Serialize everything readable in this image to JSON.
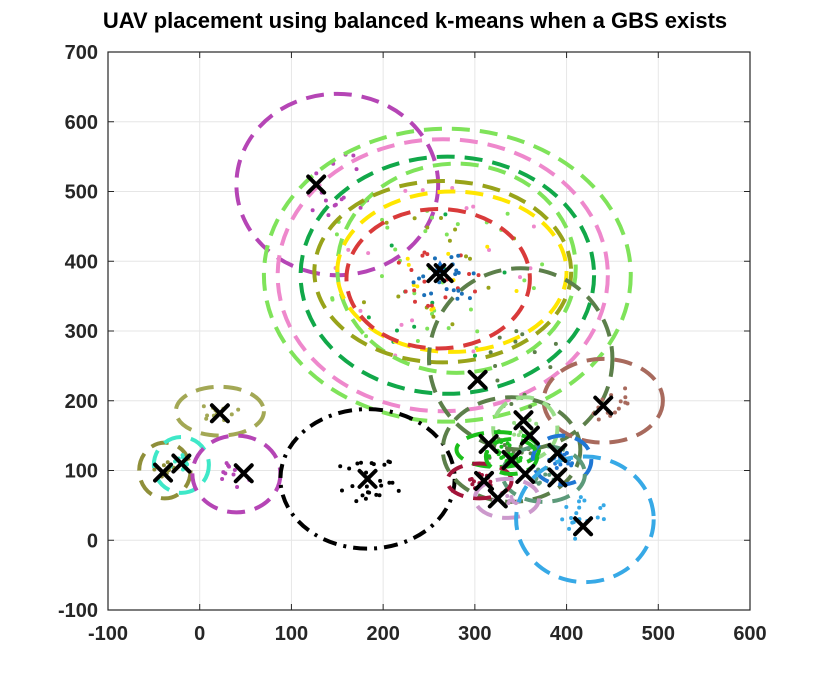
{
  "chart_data": {
    "type": "scatter",
    "title": "UAV placement using balanced k-means when a GBS exists",
    "xlabel": "",
    "ylabel": "",
    "xlim": [
      -100,
      600
    ],
    "ylim": [
      -100,
      700
    ],
    "xticks": [
      "-100",
      "0",
      "100",
      "200",
      "300",
      "400",
      "500",
      "600"
    ],
    "yticks": [
      "-100",
      "0",
      "100",
      "200",
      "300",
      "400",
      "500",
      "600",
      "700"
    ],
    "grid": true,
    "legend": "none",
    "gbs": {
      "x": 262,
      "y": 390,
      "color": "#1f77d4"
    },
    "uav_markers": [
      {
        "x": 127,
        "y": 510
      },
      {
        "x": 258,
        "y": 383
      },
      {
        "x": 266,
        "y": 383
      },
      {
        "x": 303,
        "y": 230
      },
      {
        "x": 440,
        "y": 193
      },
      {
        "x": 22,
        "y": 182
      },
      {
        "x": 353,
        "y": 172
      },
      {
        "x": 360,
        "y": 150
      },
      {
        "x": 315,
        "y": 138
      },
      {
        "x": 390,
        "y": 125
      },
      {
        "x": -20,
        "y": 110
      },
      {
        "x": 340,
        "y": 115
      },
      {
        "x": -40,
        "y": 97
      },
      {
        "x": 48,
        "y": 96
      },
      {
        "x": 355,
        "y": 95
      },
      {
        "x": 390,
        "y": 90
      },
      {
        "x": 183,
        "y": 88
      },
      {
        "x": 310,
        "y": 85
      },
      {
        "x": 325,
        "y": 60
      },
      {
        "x": 418,
        "y": 20
      }
    ],
    "clusters": [
      {
        "color": "#b545b5",
        "dash": "long",
        "cx": 150,
        "cy": 510,
        "rx": 110,
        "ry": 130,
        "n": 16,
        "sx": 40,
        "sy": 50
      },
      {
        "color": "#7fe35a",
        "dash": "long",
        "cx": 270,
        "cy": 380,
        "rx": 200,
        "ry": 210,
        "n": 22,
        "sx": 140,
        "sy": 160
      },
      {
        "color": "#ee88cc",
        "dash": "long",
        "cx": 265,
        "cy": 380,
        "rx": 180,
        "ry": 195,
        "n": 18,
        "sx": 120,
        "sy": 140
      },
      {
        "color": "#11a849",
        "dash": "long",
        "cx": 270,
        "cy": 380,
        "rx": 160,
        "ry": 170,
        "n": 12,
        "sx": 110,
        "sy": 120
      },
      {
        "color": "#7fe35a",
        "dash": "long",
        "cx": 280,
        "cy": 390,
        "rx": 130,
        "ry": 150,
        "n": 10,
        "sx": 90,
        "sy": 110
      },
      {
        "color": "#98a31a",
        "dash": "long",
        "cx": 265,
        "cy": 385,
        "rx": 140,
        "ry": 130,
        "n": 16,
        "sx": 100,
        "sy": 90
      },
      {
        "color": "#ffe600",
        "dash": "long",
        "cx": 275,
        "cy": 385,
        "rx": 125,
        "ry": 115,
        "n": 10,
        "sx": 80,
        "sy": 70
      },
      {
        "color": "#d93a3a",
        "dash": "long",
        "cx": 260,
        "cy": 375,
        "rx": 100,
        "ry": 100,
        "n": 18,
        "sx": 55,
        "sy": 40
      },
      {
        "color": "#1a6fb8",
        "dash": "none",
        "cx": 275,
        "cy": 375,
        "rx": 0,
        "ry": 0,
        "n": 20,
        "sx": 45,
        "sy": 35
      },
      {
        "color": "#5c7f4a",
        "dash": "long",
        "cx": 350,
        "cy": 260,
        "rx": 100,
        "ry": 130,
        "n": 14,
        "sx": 40,
        "sy": 80
      },
      {
        "color": "#a86a5d",
        "dash": "long",
        "cx": 440,
        "cy": 200,
        "rx": 65,
        "ry": 60,
        "n": 14,
        "sx": 30,
        "sy": 30
      },
      {
        "color": "#a3a855",
        "dash": "long",
        "cx": 22,
        "cy": 185,
        "rx": 48,
        "ry": 35,
        "n": 12,
        "sx": 22,
        "sy": 15
      },
      {
        "color": "#8f8f3a",
        "dash": "long",
        "cx": -38,
        "cy": 100,
        "rx": 28,
        "ry": 40,
        "n": 10,
        "sx": 12,
        "sy": 15
      },
      {
        "color": "#3ee8c8",
        "dash": "long",
        "cx": -20,
        "cy": 108,
        "rx": 30,
        "ry": 40,
        "n": 10,
        "sx": 12,
        "sy": 16
      },
      {
        "color": "#b545b5",
        "dash": "long",
        "cx": 40,
        "cy": 95,
        "rx": 48,
        "ry": 55,
        "n": 10,
        "sx": 18,
        "sy": 20
      },
      {
        "color": "#000000",
        "dash": "dashdot",
        "cx": 183,
        "cy": 88,
        "rx": 95,
        "ry": 100,
        "n": 26,
        "sx": 40,
        "sy": 35
      },
      {
        "color": "#5c7f4a",
        "dash": "long",
        "cx": 340,
        "cy": 130,
        "rx": 75,
        "ry": 75,
        "n": 16,
        "sx": 30,
        "sy": 30
      },
      {
        "color": "#99dd88",
        "dash": "long",
        "cx": 355,
        "cy": 160,
        "rx": 35,
        "ry": 45,
        "n": 12,
        "sx": 15,
        "sy": 18
      },
      {
        "color": "#1bbf1b",
        "dash": "long",
        "cx": 325,
        "cy": 130,
        "rx": 45,
        "ry": 25,
        "n": 14,
        "sx": 20,
        "sy": 12
      },
      {
        "color": "#1f77d4",
        "dash": "long",
        "cx": 395,
        "cy": 115,
        "rx": 32,
        "ry": 35,
        "n": 16,
        "sx": 14,
        "sy": 14
      },
      {
        "color": "#5c9a7a",
        "dash": "long",
        "cx": 375,
        "cy": 95,
        "rx": 45,
        "ry": 40,
        "n": 12,
        "sx": 18,
        "sy": 15
      },
      {
        "color": "#a3143a",
        "dash": "long",
        "cx": 305,
        "cy": 85,
        "rx": 35,
        "ry": 25,
        "n": 16,
        "sx": 15,
        "sy": 12
      },
      {
        "color": "#cc99cc",
        "dash": "long",
        "cx": 335,
        "cy": 60,
        "rx": 35,
        "ry": 28,
        "n": 12,
        "sx": 15,
        "sy": 12
      },
      {
        "color": "#1bbf1b",
        "dash": "long",
        "cx": 340,
        "cy": 120,
        "rx": 28,
        "ry": 25,
        "n": 12,
        "sx": 12,
        "sy": 12
      },
      {
        "color": "#37a9e6",
        "dash": "long",
        "cx": 420,
        "cy": 30,
        "rx": 75,
        "ry": 90,
        "n": 18,
        "sx": 30,
        "sy": 35
      }
    ]
  }
}
